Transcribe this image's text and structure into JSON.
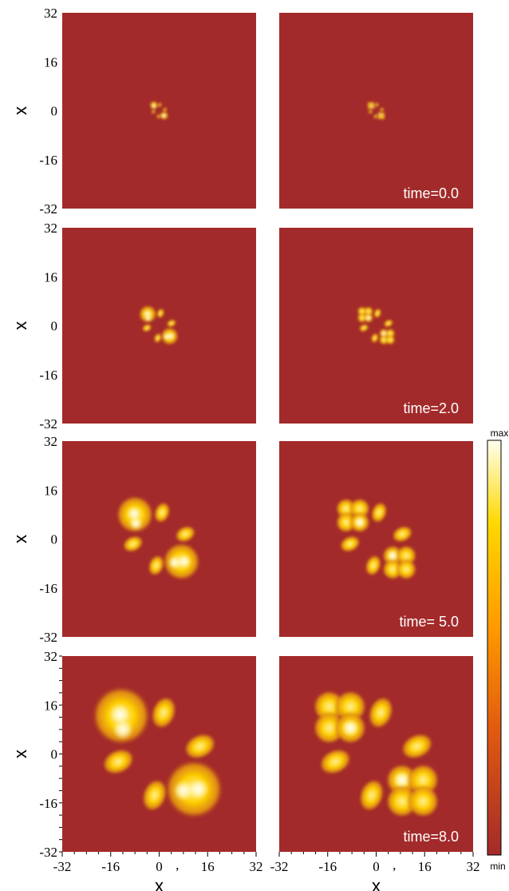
{
  "colors": {
    "background": "#a32a2a",
    "blob_outer": "#e89a10",
    "blob_mid": "#ffc800",
    "blob_core": "#fff6a0",
    "hotspot": "#fffde8"
  },
  "chart_data": {
    "type": "heatmap",
    "layout": {
      "rows": 4,
      "columns": 2
    },
    "x_axis": {
      "label": "x",
      "ticks": [
        "-32",
        "-16",
        "0",
        "16",
        "32"
      ],
      "range": [
        -32,
        32
      ]
    },
    "y_axis": {
      "label": "x",
      "ticks": [
        "32",
        "16",
        "0",
        "-16",
        "-32"
      ],
      "range": [
        -32,
        32
      ]
    },
    "bottom_tick_labels": {
      "col0": [
        "-32",
        "-16",
        "0",
        "16",
        "32"
      ],
      "col1": [
        "-32",
        "-16",
        "0",
        "16",
        "32"
      ],
      "extra_mark": ","
    },
    "colorbar": {
      "max_label": "max",
      "min_label": "min"
    },
    "rows": [
      {
        "time_label": "time=0.0",
        "scale": 0.14
      },
      {
        "time_label": "time=2.0",
        "scale": 0.3
      },
      {
        "time_label": "time= 5.0",
        "scale": 0.64
      },
      {
        "time_label": "time=8.0",
        "scale": 1.0
      }
    ],
    "blobs_left": [
      {
        "x": -12.5,
        "y": 12.5,
        "r": 8.5,
        "kind": "round",
        "hot": [
          [
            -13,
            13
          ],
          [
            -12,
            8
          ]
        ]
      },
      {
        "x": 11.5,
        "y": -11.5,
        "r": 8.5,
        "kind": "round",
        "hot": [
          [
            8,
            -12
          ],
          [
            13,
            -11.5
          ]
        ]
      },
      {
        "x": 1.5,
        "y": 13.5,
        "rx": 3.0,
        "ry": 4.2,
        "rot": 20,
        "kind": "lobe"
      },
      {
        "x": 13.5,
        "y": 2.5,
        "rx": 4.2,
        "ry": 3.0,
        "rot": -25,
        "kind": "lobe"
      },
      {
        "x": -13.5,
        "y": -2.5,
        "rx": 4.2,
        "ry": 3.0,
        "rot": -25,
        "kind": "lobe"
      },
      {
        "x": -1.5,
        "y": -13.5,
        "rx": 3.0,
        "ry": 4.2,
        "rot": 20,
        "kind": "lobe"
      }
    ],
    "blobs_right": [
      {
        "x": -15.5,
        "y": 15.5,
        "r": 4.6,
        "kind": "cell"
      },
      {
        "x": -8.5,
        "y": 15.5,
        "r": 4.6,
        "kind": "cell"
      },
      {
        "x": -15.5,
        "y": 8.5,
        "r": 4.6,
        "kind": "cell"
      },
      {
        "x": -8.5,
        "y": 8.5,
        "r": 4.6,
        "kind": "cell",
        "hot": true
      },
      {
        "x": 8.5,
        "y": -8.5,
        "r": 4.6,
        "kind": "cell",
        "hot": true
      },
      {
        "x": 15.5,
        "y": -8.5,
        "r": 4.6,
        "kind": "cell"
      },
      {
        "x": 8.5,
        "y": -15.5,
        "r": 4.6,
        "kind": "cell"
      },
      {
        "x": 15.5,
        "y": -15.5,
        "r": 4.6,
        "kind": "cell"
      },
      {
        "x": 1.5,
        "y": 13.5,
        "rx": 3.0,
        "ry": 4.2,
        "rot": 20,
        "kind": "lobe"
      },
      {
        "x": 13.5,
        "y": 2.5,
        "rx": 4.2,
        "ry": 3.0,
        "rot": -25,
        "kind": "lobe"
      },
      {
        "x": -13.5,
        "y": -2.5,
        "rx": 4.2,
        "ry": 3.0,
        "rot": -25,
        "kind": "lobe"
      },
      {
        "x": -1.5,
        "y": -13.5,
        "rx": 3.0,
        "ry": 4.2,
        "rot": 20,
        "kind": "lobe"
      }
    ]
  }
}
